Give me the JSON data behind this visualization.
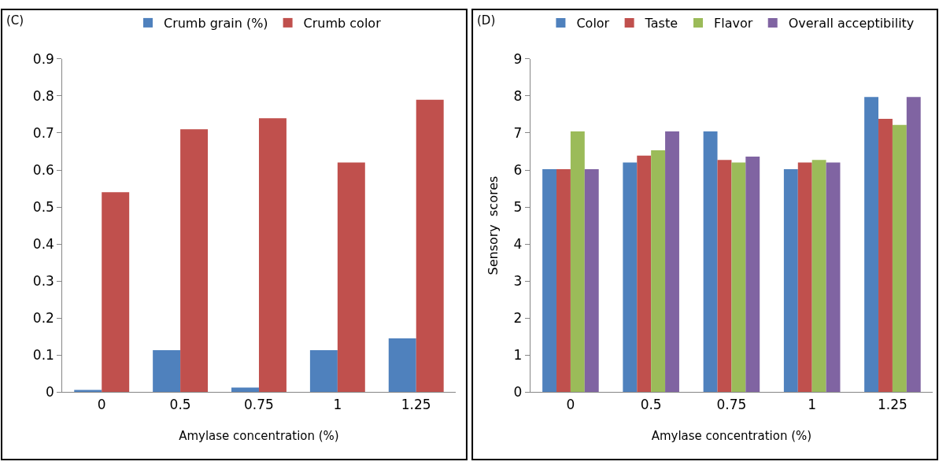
{
  "chart_data": [
    {
      "type": "bar",
      "title": "(C)",
      "xlabel": "Amylase concentration (%)",
      "categories": [
        "0",
        "0.5",
        "0.75",
        "1",
        "1.25"
      ],
      "series": [
        {
          "name": "Crumb grain (%)",
          "color": "#4f81bd",
          "values": [
            0.006,
            0.113,
            0.012,
            0.113,
            0.145
          ]
        },
        {
          "name": "Crumb color",
          "color": "#c0504d",
          "values": [
            0.54,
            0.71,
            0.74,
            0.62,
            0.79
          ]
        }
      ],
      "ylim": [
        0,
        0.9
      ],
      "yticks": [
        {
          "value": 0,
          "label": "0"
        },
        0.1,
        0.2,
        0.3,
        0.4,
        0.5,
        0.6,
        0.7,
        0.8,
        0.9
      ],
      "legend": "top"
    },
    {
      "type": "bar",
      "title": "(D)",
      "xlabel": "Amylase concentration (%)",
      "ylabel": "Sensory  scores",
      "categories": [
        "0",
        "0.5",
        "0.75",
        "1",
        "1.25"
      ],
      "series": [
        {
          "name": "Color",
          "color": "#4f81bd",
          "values": [
            6.02,
            6.2,
            7.04,
            6.02,
            7.97
          ]
        },
        {
          "name": "Taste",
          "color": "#c0504d",
          "values": [
            6.02,
            6.39,
            6.27,
            6.2,
            7.38
          ]
        },
        {
          "name": "Flavor",
          "color": "#9bbb59",
          "values": [
            7.04,
            6.53,
            6.2,
            6.27,
            7.22
          ]
        },
        {
          "name": "Overall acceptibility",
          "color": "#8064a2",
          "values": [
            6.02,
            7.04,
            6.36,
            6.2,
            7.97
          ]
        }
      ],
      "ylim": [
        0,
        9
      ],
      "yticks": [
        0,
        1,
        2,
        3,
        4,
        5,
        6,
        7,
        8,
        9
      ],
      "legend": "top"
    }
  ]
}
